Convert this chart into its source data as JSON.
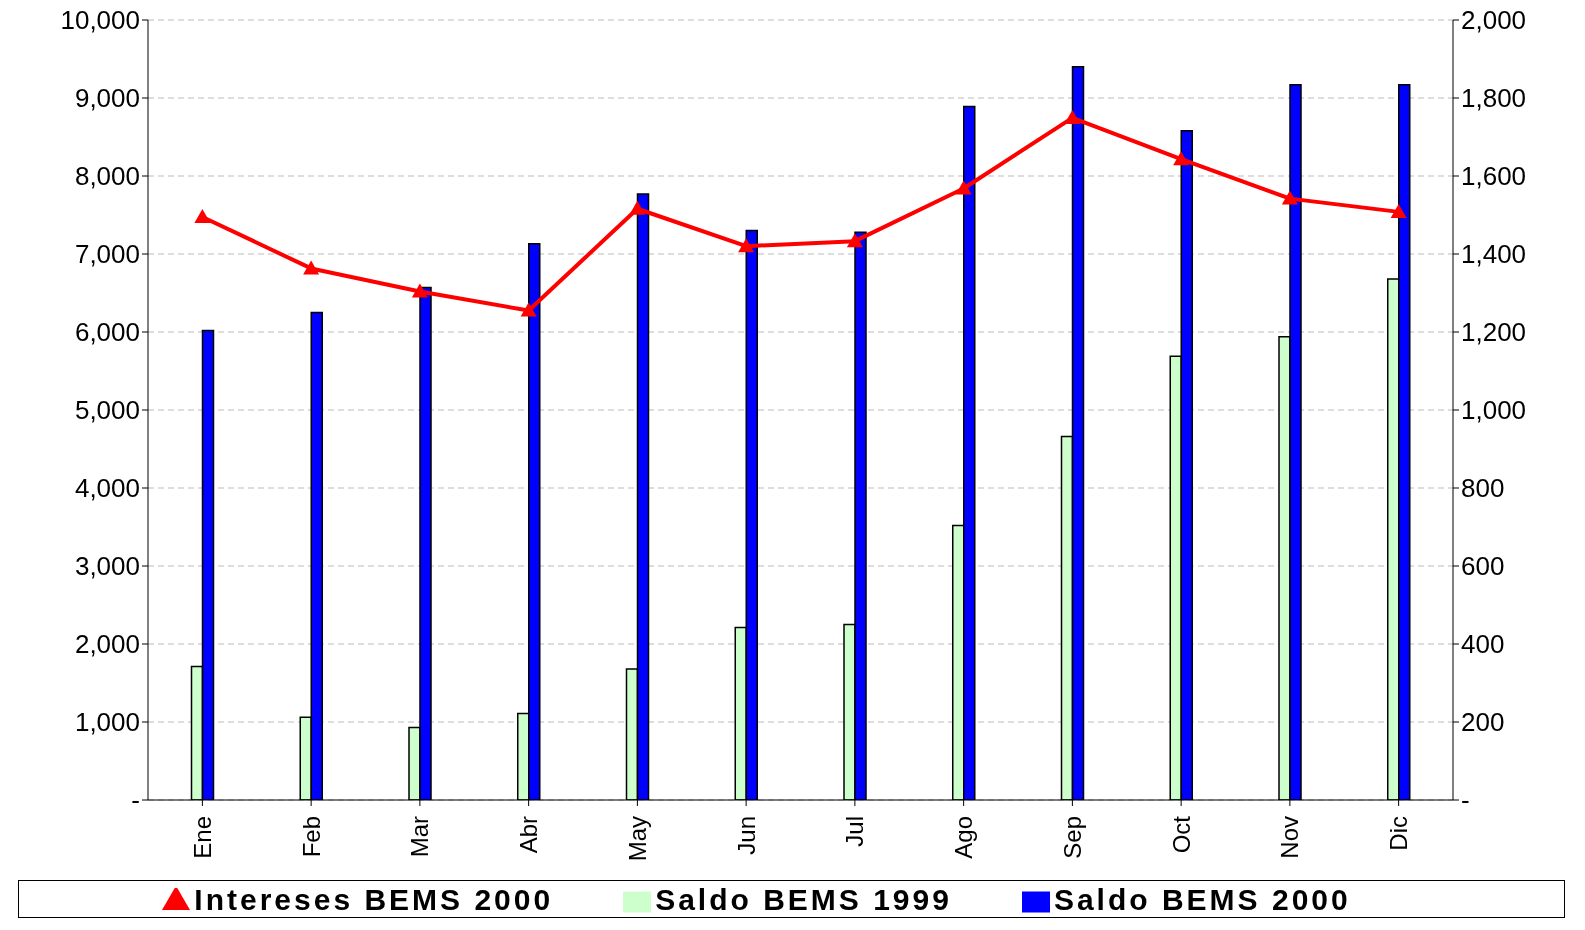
{
  "chart_data": {
    "type": "bar",
    "categories": [
      "Ene",
      "Feb",
      "Mar",
      "Abr",
      "May",
      "Jun",
      "Jul",
      "Ago",
      "Sep",
      "Oct",
      "Nov",
      "Dic"
    ],
    "series": [
      {
        "name": "Saldo BEMS 1999",
        "color": "#ccffcc",
        "values": [
          1710,
          1060,
          930,
          1110,
          1680,
          2210,
          2250,
          3520,
          4660,
          5690,
          5940,
          6680
        ]
      },
      {
        "name": "Saldo BEMS 2000",
        "color": "#0000ff",
        "values": [
          6020,
          6250,
          6570,
          7130,
          7770,
          7300,
          7280,
          8890,
          9400,
          8580,
          9170,
          9170
        ]
      },
      {
        "name": "Intereses BEMS 2000",
        "type": "line",
        "axis": "y2",
        "color": "#ff0000",
        "marker": "triangle",
        "values": [
          1495,
          1363,
          1304,
          1255,
          1516,
          1420,
          1433,
          1568,
          1749,
          1643,
          1542,
          1508
        ]
      }
    ],
    "ylim": [
      0,
      10000
    ],
    "yticks": [
      {
        "value": 0,
        "label": "-"
      },
      {
        "value": 1000,
        "label": "1,000"
      },
      {
        "value": 2000,
        "label": "2,000"
      },
      {
        "value": 3000,
        "label": "3,000"
      },
      {
        "value": 4000,
        "label": "4,000"
      },
      {
        "value": 5000,
        "label": "5,000"
      },
      {
        "value": 6000,
        "label": "6,000"
      },
      {
        "value": 7000,
        "label": "7,000"
      },
      {
        "value": 8000,
        "label": "8,000"
      },
      {
        "value": 9000,
        "label": "9,000"
      },
      {
        "value": 10000,
        "label": "10,000"
      }
    ],
    "y2lim": [
      0,
      2000
    ],
    "y2ticks": [
      {
        "value": 0,
        "label": "-"
      },
      200,
      400,
      600,
      800,
      {
        "value": 1000,
        "label": "1,000"
      },
      {
        "value": 1200,
        "label": "1,200"
      },
      {
        "value": 1400,
        "label": "1,400"
      },
      {
        "value": 1600,
        "label": "1,600"
      },
      {
        "value": 1800,
        "label": "1,800"
      },
      {
        "value": 2000,
        "label": "2,000"
      }
    ],
    "grid": "y",
    "legend": "bottom"
  }
}
